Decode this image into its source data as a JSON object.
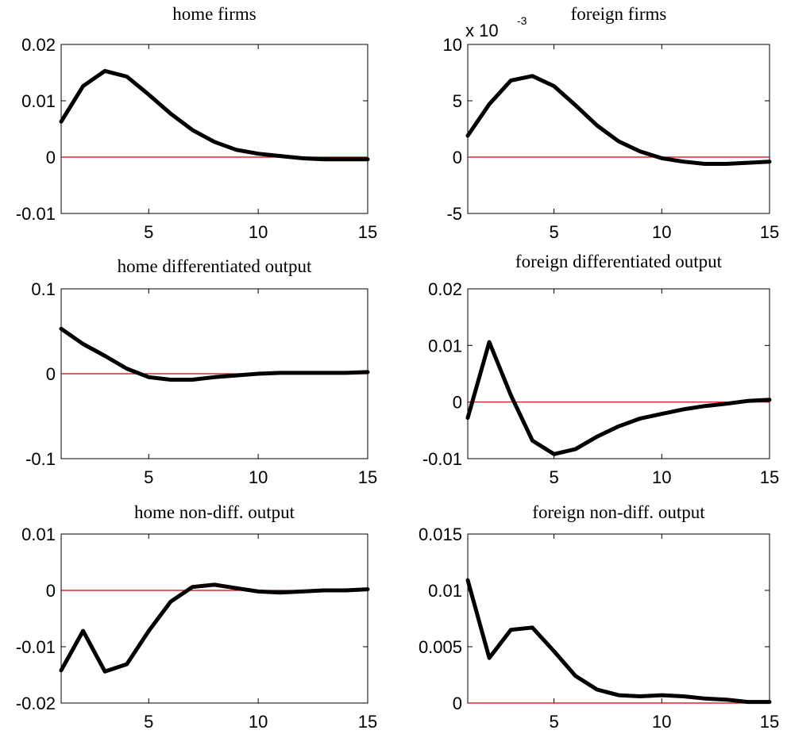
{
  "colors": {
    "series": "#000000",
    "zero_line": "#cc0000",
    "axes": "#000000",
    "background": "#ffffff"
  },
  "chart_data": [
    {
      "type": "line",
      "title": "home firms",
      "xlim": [
        1,
        15
      ],
      "ylim": [
        -0.01,
        0.02
      ],
      "xticks": [
        5,
        10,
        15
      ],
      "yticks": [
        -0.01,
        0,
        0.01,
        0.02
      ],
      "ytick_labels": [
        "-0.01",
        "0",
        "0.01",
        "0.02"
      ],
      "x": [
        1,
        2,
        3,
        4,
        5,
        6,
        7,
        8,
        9,
        10,
        11,
        12,
        13,
        14,
        15
      ],
      "series": [
        {
          "values": [
            0.0063,
            0.0126,
            0.0153,
            0.0143,
            0.0111,
            0.0077,
            0.0048,
            0.0027,
            0.0013,
            0.0006,
            0.0002,
            -0.0002,
            -0.0004,
            -0.0004,
            -0.0004
          ]
        }
      ],
      "reference_line": 0
    },
    {
      "type": "line",
      "title": "foreign firms",
      "scale_label": {
        "base": "x 10",
        "exponent": "-3"
      },
      "xlim": [
        1,
        15
      ],
      "ylim": [
        -5,
        10
      ],
      "xticks": [
        5,
        10,
        15
      ],
      "yticks": [
        -5,
        0,
        5,
        10
      ],
      "ytick_labels": [
        "-5",
        "0",
        "5",
        "10"
      ],
      "x": [
        1,
        2,
        3,
        4,
        5,
        6,
        7,
        8,
        9,
        10,
        11,
        12,
        13,
        14,
        15
      ],
      "series": [
        {
          "values": [
            1.9,
            4.7,
            6.8,
            7.2,
            6.3,
            4.6,
            2.8,
            1.4,
            0.5,
            -0.1,
            -0.4,
            -0.6,
            -0.6,
            -0.5,
            -0.4
          ]
        }
      ],
      "reference_line": 0
    },
    {
      "type": "line",
      "title": "home differentiated output",
      "xlim": [
        1,
        15
      ],
      "ylim": [
        -0.1,
        0.1
      ],
      "xticks": [
        5,
        10,
        15
      ],
      "yticks": [
        -0.1,
        0,
        0.1
      ],
      "ytick_labels": [
        "-0.1",
        "0",
        "0.1"
      ],
      "x": [
        1,
        2,
        3,
        4,
        5,
        6,
        7,
        8,
        9,
        10,
        11,
        12,
        13,
        14,
        15
      ],
      "series": [
        {
          "values": [
            0.053,
            0.035,
            0.021,
            0.006,
            -0.004,
            -0.007,
            -0.007,
            -0.004,
            -0.002,
            0.0,
            0.001,
            0.001,
            0.001,
            0.001,
            0.002
          ]
        }
      ],
      "reference_line": 0
    },
    {
      "type": "line",
      "title": "foreign differentiated output",
      "xlim": [
        1,
        15
      ],
      "ylim": [
        -0.01,
        0.02
      ],
      "xticks": [
        5,
        10,
        15
      ],
      "yticks": [
        -0.01,
        0,
        0.01,
        0.02
      ],
      "ytick_labels": [
        "-0.01",
        "0",
        "0.01",
        "0.02"
      ],
      "x": [
        1,
        2,
        3,
        4,
        5,
        6,
        7,
        8,
        9,
        10,
        11,
        12,
        13,
        14,
        15
      ],
      "series": [
        {
          "values": [
            -0.0028,
            0.0106,
            0.0012,
            -0.0068,
            -0.0092,
            -0.0083,
            -0.0061,
            -0.0043,
            -0.0029,
            -0.0021,
            -0.0013,
            -0.0007,
            -0.0003,
            0.0002,
            0.0004
          ]
        }
      ],
      "reference_line": 0
    },
    {
      "type": "line",
      "title": "home non-diff. output",
      "xlim": [
        1,
        15
      ],
      "ylim": [
        -0.02,
        0.01
      ],
      "xticks": [
        5,
        10,
        15
      ],
      "yticks": [
        -0.02,
        -0.01,
        0,
        0.01
      ],
      "ytick_labels": [
        "-0.02",
        "-0.01",
        "0",
        "0.01"
      ],
      "x": [
        1,
        2,
        3,
        4,
        5,
        6,
        7,
        8,
        9,
        10,
        11,
        12,
        13,
        14,
        15
      ],
      "series": [
        {
          "values": [
            -0.0142,
            -0.0072,
            -0.0144,
            -0.0131,
            -0.0072,
            -0.002,
            0.0006,
            0.001,
            0.0004,
            -0.0002,
            -0.0004,
            -0.0002,
            0.0,
            0.0,
            0.0002
          ]
        }
      ],
      "reference_line": 0
    },
    {
      "type": "line",
      "title": "foreign non-diff. output",
      "xlim": [
        1,
        15
      ],
      "ylim": [
        0,
        0.015
      ],
      "xticks": [
        5,
        10,
        15
      ],
      "yticks": [
        0,
        0.005,
        0.01,
        0.015
      ],
      "ytick_labels": [
        "0",
        "0.005",
        "0.01",
        "0.015"
      ],
      "x": [
        1,
        2,
        3,
        4,
        5,
        6,
        7,
        8,
        9,
        10,
        11,
        12,
        13,
        14,
        15
      ],
      "series": [
        {
          "values": [
            0.0109,
            0.004,
            0.0065,
            0.0067,
            0.0046,
            0.0024,
            0.0012,
            0.0007,
            0.0006,
            0.0007,
            0.0006,
            0.0004,
            0.0003,
            0.0001,
            0.0001
          ]
        }
      ],
      "reference_line": 0
    }
  ]
}
